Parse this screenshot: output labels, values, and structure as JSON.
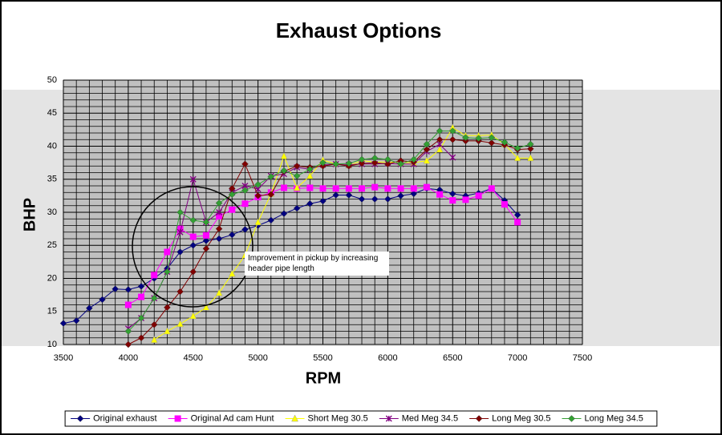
{
  "chart_data": {
    "type": "line",
    "title": "Exhaust Options",
    "xlabel": "RPM",
    "ylabel": "BHP",
    "xlim": [
      3500,
      7500
    ],
    "xticks": [
      3500,
      4000,
      4500,
      5000,
      5500,
      6000,
      6500,
      7000,
      7500
    ],
    "ylim": [
      10,
      50
    ],
    "yticks": [
      10,
      15,
      20,
      25,
      30,
      35,
      40,
      45,
      50
    ],
    "grid": true,
    "legend": "bottom",
    "annotation": "Improvement in pickup by increasing header pipe length",
    "series": [
      {
        "name": "Original exhaust",
        "color": "#000080",
        "marker": "diamond",
        "x": [
          3500,
          3600,
          3700,
          3800,
          3900,
          4000,
          4100,
          4200,
          4300,
          4400,
          4500,
          4600,
          4700,
          4800,
          4900,
          5000,
          5100,
          5200,
          5300,
          5400,
          5500,
          5600,
          5700,
          5800,
          5900,
          6000,
          6100,
          6200,
          6300,
          6400,
          6500,
          6600,
          6700,
          6800,
          6900,
          7000
        ],
        "values": [
          13.2,
          13.6,
          15.5,
          16.8,
          18.4,
          18.3,
          18.8,
          20.0,
          21.5,
          24.0,
          25.0,
          25.7,
          26.0,
          26.6,
          27.4,
          28.0,
          28.8,
          29.8,
          30.6,
          31.3,
          31.7,
          32.6,
          32.6,
          32.0,
          32.0,
          32.0,
          32.5,
          32.8,
          33.6,
          33.4,
          32.8,
          32.5,
          32.9,
          33.6,
          31.8,
          29.6
        ]
      },
      {
        "name": "Original Ad cam Hunt",
        "color": "#ff00ff",
        "marker": "square",
        "x": [
          4000,
          4100,
          4200,
          4300,
          4400,
          4500,
          4600,
          4700,
          4800,
          4900,
          5000,
          5100,
          5200,
          5300,
          5400,
          5500,
          5600,
          5700,
          5800,
          5900,
          6000,
          6100,
          6200,
          6300,
          6400,
          6500,
          6600,
          6700,
          6800,
          6900,
          7000
        ],
        "values": [
          16.0,
          17.2,
          20.5,
          24.0,
          27.5,
          26.3,
          26.5,
          29.4,
          30.4,
          31.3,
          32.3,
          33.0,
          33.7,
          33.6,
          33.7,
          33.6,
          33.6,
          33.6,
          33.6,
          33.8,
          33.6,
          33.6,
          33.6,
          33.8,
          32.7,
          31.8,
          31.9,
          32.5,
          33.6,
          31.2,
          28.5
        ]
      },
      {
        "name": "Short Meg 30.5",
        "color": "#ffff00",
        "marker": "triangle",
        "x": [
          4200,
          4300,
          4400,
          4500,
          4600,
          4700,
          4800,
          4900,
          5000,
          5100,
          5200,
          5300,
          5400,
          5500,
          5600,
          5700,
          5800,
          5900,
          6000,
          6100,
          6200,
          6300,
          6400,
          6500,
          6600,
          6700,
          6800,
          6900,
          7000,
          7100
        ],
        "values": [
          10.7,
          12.0,
          13.1,
          14.3,
          15.6,
          17.8,
          20.7,
          23.5,
          28.5,
          32.8,
          38.5,
          33.7,
          35.5,
          37.9,
          37.3,
          37.1,
          37.8,
          37.6,
          37.6,
          37.5,
          37.5,
          37.8,
          39.5,
          42.8,
          41.6,
          41.6,
          41.7,
          40.3,
          38.2,
          38.2
        ]
      },
      {
        "name": "Med Meg 34.5",
        "color": "#800080",
        "marker": "x",
        "x": [
          4000,
          4100,
          4200,
          4300,
          4400,
          4500,
          4600,
          4700,
          4800,
          4900,
          5000,
          5100,
          5200,
          5300,
          5400,
          5500,
          5600,
          5700,
          5800,
          5900,
          6000,
          6100,
          6200,
          6300,
          6400,
          6500
        ],
        "values": [
          12.4,
          14.0,
          17.0,
          21.0,
          27.0,
          35.0,
          28.5,
          30.0,
          33.0,
          34.0,
          33.5,
          35.5,
          35.8,
          36.8,
          36.5,
          37.2,
          37.3,
          37.2,
          37.3,
          37.3,
          37.4,
          37.3,
          37.3,
          39.2,
          40.3,
          38.3
        ]
      },
      {
        "name": "Long Meg 30.5",
        "color": "#800000",
        "marker": "diamond",
        "x": [
          4000,
          4100,
          4200,
          4300,
          4400,
          4500,
          4600,
          4700,
          4800,
          4900,
          5000,
          5100,
          5200,
          5300,
          5400,
          5500,
          5600,
          5700,
          5800,
          5900,
          6000,
          6100,
          6200,
          6300,
          6400,
          6500,
          6600,
          6700,
          6800,
          6900,
          7000,
          7100
        ],
        "values": [
          10.0,
          11.0,
          13.0,
          15.6,
          18.0,
          21.0,
          24.5,
          27.5,
          33.6,
          37.3,
          32.5,
          32.7,
          36.2,
          37.0,
          36.8,
          37.0,
          37.3,
          37.0,
          37.4,
          37.5,
          37.3,
          37.8,
          37.6,
          39.5,
          41.0,
          41.0,
          40.8,
          40.8,
          40.5,
          40.2,
          39.5,
          39.6
        ]
      },
      {
        "name": "Long Meg 34.5",
        "color": "#33a033",
        "marker": "diamond",
        "x": [
          4000,
          4100,
          4200,
          4300,
          4400,
          4500,
          4600,
          4700,
          4800,
          4900,
          5000,
          5100,
          5200,
          5300,
          5400,
          5500,
          5600,
          5700,
          5800,
          5900,
          6000,
          6100,
          6200,
          6300,
          6400,
          6500,
          6600,
          6700,
          6800,
          6900,
          7000,
          7100
        ],
        "values": [
          12.0,
          14.0,
          17.0,
          21.0,
          30.0,
          28.8,
          28.5,
          31.4,
          32.7,
          33.3,
          34.2,
          35.4,
          36.3,
          35.5,
          36.5,
          37.5,
          37.3,
          37.4,
          38.0,
          38.2,
          38.0,
          37.3,
          38.0,
          40.3,
          42.3,
          42.3,
          41.3,
          41.2,
          41.3,
          40.6,
          39.7,
          40.3
        ]
      }
    ]
  }
}
